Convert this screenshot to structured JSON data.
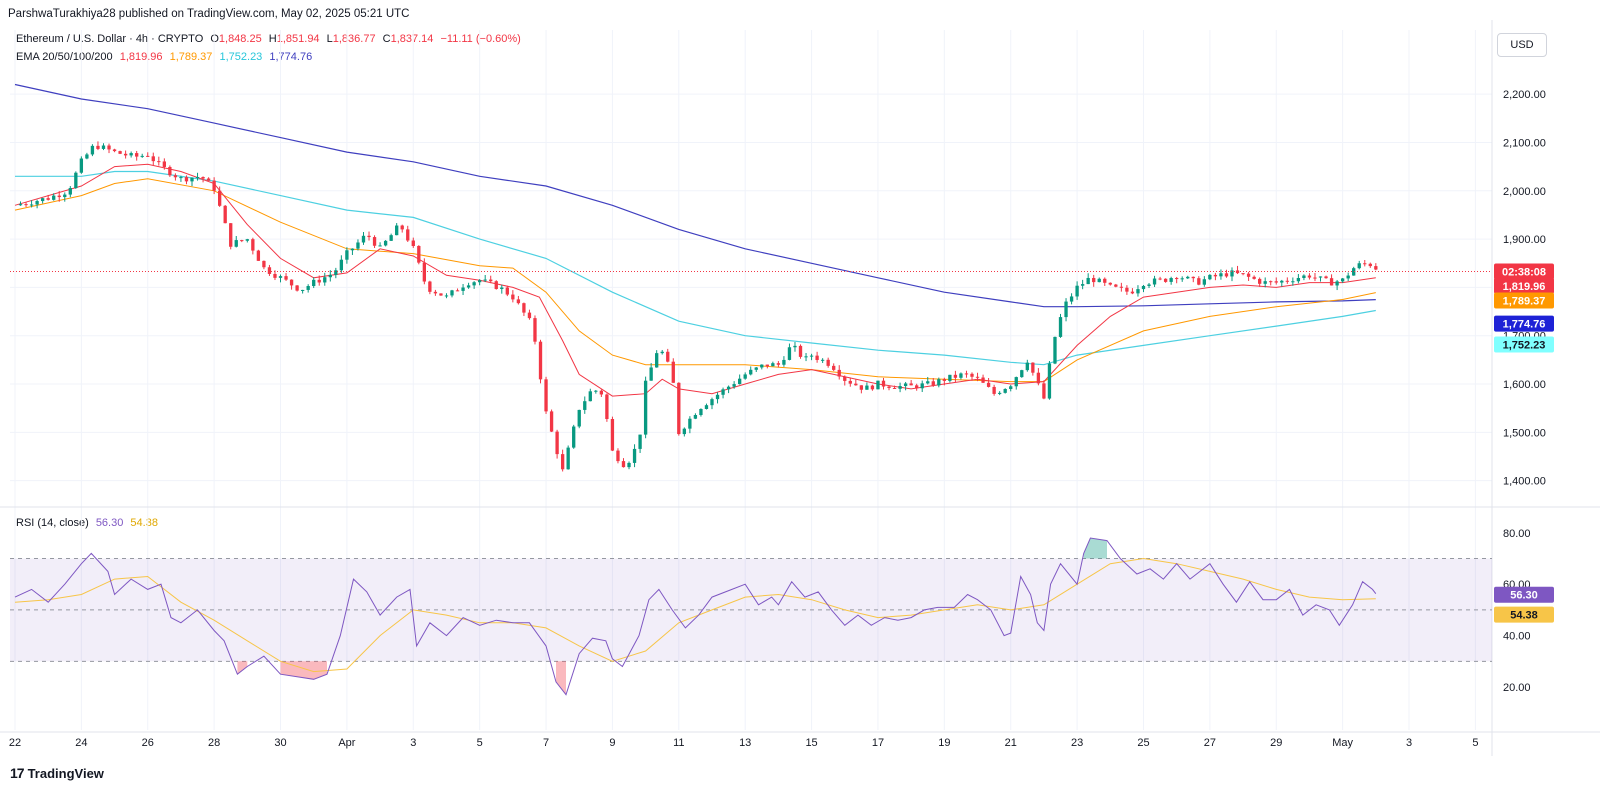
{
  "publisher": "ParshwaTurakhiya28 published on TradingView.com, May 02, 2025 05:21 UTC",
  "currency_button": "USD",
  "brand": {
    "logo": "17",
    "name": "TradingView"
  },
  "ohlc_legend": {
    "symbol": "Ethereum / U.S. Dollar · 4h · CRYPTO",
    "open_label": "O",
    "open": "1,848.25",
    "high_label": "H",
    "high": "1,851.94",
    "low_label": "L",
    "low": "1,836.77",
    "close_label": "C",
    "close": "1,837.14",
    "change": "−11.11 (−0.60%)"
  },
  "ema_legend": {
    "label": "EMA 20/50/100/200",
    "ema20": "1,819.96",
    "ema50": "1,789.37",
    "ema100": "1,752.23",
    "ema200": "1,774.76"
  },
  "rsi_legend": {
    "label": "RSI (14, close)",
    "rsi": "56.30",
    "ma": "54.38"
  },
  "colors": {
    "up": "#089981",
    "down": "#f23645",
    "ema20": "#f23645",
    "ema50": "#ff9800",
    "ema100": "#4dd0e1",
    "ema200": "#3f3fbf",
    "rsi": "#7e57c2",
    "rsi_ma": "#f7c548",
    "rsi_band": "#7e57c2"
  },
  "price_labels": {
    "countdown": "02:38:08",
    "ema20": "1,819.96",
    "ema50": "1,789.37",
    "ema200": "1,774.76",
    "ema100": "1,752.23"
  },
  "rsi_labels": {
    "rsi": "56.30",
    "ma": "54.38"
  },
  "chart_data": {
    "type": "line",
    "title": "Ethereum / U.S. Dollar · 4h · CRYPTO",
    "price_axis": {
      "ticks": [
        1400,
        1500,
        1600,
        1700,
        1800,
        1900,
        2000,
        2100,
        2200
      ],
      "tick_labels": [
        "1,400.00",
        "1,500.00",
        "1,600.00",
        "1,700.00",
        "1,800.00",
        "1,900.00",
        "2,000.00",
        "2,100.00",
        "2,200.00"
      ],
      "ylim": [
        1360,
        2250
      ]
    },
    "rsi_axis": {
      "ticks": [
        20,
        40,
        60,
        80
      ],
      "tick_labels": [
        "20.00",
        "40.00",
        "60.00",
        "80.00"
      ],
      "ylim": [
        13,
        85
      ],
      "band": [
        30,
        70
      ],
      "midline": 50
    },
    "x_axis": {
      "labels": [
        {
          "day": 0,
          "text": "22"
        },
        {
          "day": 2,
          "text": "24"
        },
        {
          "day": 4,
          "text": "26"
        },
        {
          "day": 6,
          "text": "28"
        },
        {
          "day": 8,
          "text": "30"
        },
        {
          "day": 10,
          "text": "Apr"
        },
        {
          "day": 12,
          "text": "3"
        },
        {
          "day": 14,
          "text": "5"
        },
        {
          "day": 16,
          "text": "7"
        },
        {
          "day": 18,
          "text": "9"
        },
        {
          "day": 20,
          "text": "11"
        },
        {
          "day": 22,
          "text": "13"
        },
        {
          "day": 24,
          "text": "15"
        },
        {
          "day": 26,
          "text": "17"
        },
        {
          "day": 28,
          "text": "19"
        },
        {
          "day": 30,
          "text": "21"
        },
        {
          "day": 32,
          "text": "23"
        },
        {
          "day": 34,
          "text": "25"
        },
        {
          "day": 36,
          "text": "27"
        },
        {
          "day": 38,
          "text": "29"
        },
        {
          "day": 40,
          "text": "May"
        },
        {
          "day": 42,
          "text": "3"
        },
        {
          "day": 44,
          "text": "5"
        }
      ],
      "xlim": [
        -0.15,
        44.5
      ]
    },
    "price_path": [
      [
        0,
        1970
      ],
      [
        1,
        1985
      ],
      [
        1.6,
        2000
      ],
      [
        2,
        2060
      ],
      [
        2.4,
        2095
      ],
      [
        3,
        2080
      ],
      [
        3.6,
        2070
      ],
      [
        4,
        2075
      ],
      [
        4.4,
        2050
      ],
      [
        5,
        2025
      ],
      [
        5.6,
        2030
      ],
      [
        6,
        2005
      ],
      [
        6.5,
        1890
      ],
      [
        7,
        1900
      ],
      [
        7.5,
        1840
      ],
      [
        8,
        1820
      ],
      [
        8.6,
        1795
      ],
      [
        9,
        1810
      ],
      [
        9.6,
        1830
      ],
      [
        10,
        1870
      ],
      [
        10.6,
        1910
      ],
      [
        11,
        1880
      ],
      [
        11.6,
        1930
      ],
      [
        12,
        1880
      ],
      [
        12.4,
        1800
      ],
      [
        13,
        1780
      ],
      [
        13.6,
        1810
      ],
      [
        14,
        1815
      ],
      [
        14.6,
        1800
      ],
      [
        15,
        1780
      ],
      [
        15.6,
        1720
      ],
      [
        16,
        1540
      ],
      [
        16.5,
        1420
      ],
      [
        17,
        1550
      ],
      [
        17.4,
        1590
      ],
      [
        17.7,
        1580
      ],
      [
        18,
        1460
      ],
      [
        18.4,
        1430
      ],
      [
        18.8,
        1480
      ],
      [
        19,
        1600
      ],
      [
        19.4,
        1680
      ],
      [
        19.8,
        1620
      ],
      [
        20,
        1500
      ],
      [
        20.6,
        1550
      ],
      [
        21,
        1570
      ],
      [
        21.6,
        1600
      ],
      [
        22,
        1620
      ],
      [
        22.6,
        1640
      ],
      [
        23,
        1640
      ],
      [
        23.4,
        1680
      ],
      [
        23.8,
        1650
      ],
      [
        24,
        1660
      ],
      [
        24.6,
        1640
      ],
      [
        25,
        1610
      ],
      [
        25.6,
        1590
      ],
      [
        26,
        1600
      ],
      [
        26.6,
        1595
      ],
      [
        27,
        1595
      ],
      [
        27.6,
        1600
      ],
      [
        28,
        1610
      ],
      [
        28.6,
        1620
      ],
      [
        29,
        1610
      ],
      [
        29.5,
        1580
      ],
      [
        30,
        1600
      ],
      [
        30.5,
        1650
      ],
      [
        31,
        1570
      ],
      [
        31.3,
        1690
      ],
      [
        31.6,
        1760
      ],
      [
        32,
        1800
      ],
      [
        32.4,
        1820
      ],
      [
        33,
        1800
      ],
      [
        33.6,
        1790
      ],
      [
        34,
        1810
      ],
      [
        34.6,
        1815
      ],
      [
        35,
        1825
      ],
      [
        35.6,
        1810
      ],
      [
        36,
        1820
      ],
      [
        36.6,
        1830
      ],
      [
        37,
        1825
      ],
      [
        37.6,
        1810
      ],
      [
        38,
        1810
      ],
      [
        38.6,
        1820
      ],
      [
        39,
        1825
      ],
      [
        39.6,
        1810
      ],
      [
        40,
        1815
      ],
      [
        40.4,
        1845
      ],
      [
        40.8,
        1850
      ],
      [
        41,
        1837
      ]
    ],
    "ema200_path": [
      [
        0,
        2220
      ],
      [
        2,
        2190
      ],
      [
        4,
        2170
      ],
      [
        6,
        2140
      ],
      [
        8,
        2110
      ],
      [
        10,
        2080
      ],
      [
        12,
        2060
      ],
      [
        14,
        2030
      ],
      [
        16,
        2010
      ],
      [
        18,
        1970
      ],
      [
        20,
        1920
      ],
      [
        22,
        1880
      ],
      [
        24,
        1850
      ],
      [
        26,
        1820
      ],
      [
        28,
        1790
      ],
      [
        30,
        1770
      ],
      [
        31,
        1760
      ],
      [
        32,
        1760
      ],
      [
        34,
        1762
      ],
      [
        36,
        1766
      ],
      [
        38,
        1770
      ],
      [
        40,
        1772
      ],
      [
        41,
        1774.76
      ]
    ],
    "ema100_path": [
      [
        0,
        2030
      ],
      [
        2,
        2030
      ],
      [
        3,
        2040
      ],
      [
        4,
        2040
      ],
      [
        6,
        2020
      ],
      [
        8,
        1990
      ],
      [
        10,
        1960
      ],
      [
        12,
        1945
      ],
      [
        14,
        1900
      ],
      [
        16,
        1860
      ],
      [
        18,
        1790
      ],
      [
        20,
        1730
      ],
      [
        22,
        1700
      ],
      [
        24,
        1685
      ],
      [
        26,
        1670
      ],
      [
        28,
        1660
      ],
      [
        30,
        1645
      ],
      [
        31,
        1640
      ],
      [
        32,
        1660
      ],
      [
        34,
        1680
      ],
      [
        36,
        1700
      ],
      [
        38,
        1720
      ],
      [
        40,
        1740
      ],
      [
        41,
        1752.23
      ]
    ],
    "ema50_path": [
      [
        0,
        1960
      ],
      [
        2,
        1990
      ],
      [
        3,
        2015
      ],
      [
        4,
        2025
      ],
      [
        6,
        2000
      ],
      [
        8,
        1935
      ],
      [
        10,
        1880
      ],
      [
        12,
        1870
      ],
      [
        14,
        1845
      ],
      [
        15,
        1840
      ],
      [
        16,
        1790
      ],
      [
        17,
        1710
      ],
      [
        18,
        1660
      ],
      [
        19,
        1640
      ],
      [
        20,
        1640
      ],
      [
        22,
        1640
      ],
      [
        24,
        1630
      ],
      [
        26,
        1615
      ],
      [
        28,
        1610
      ],
      [
        30,
        1605
      ],
      [
        31,
        1605
      ],
      [
        32,
        1650
      ],
      [
        34,
        1710
      ],
      [
        36,
        1740
      ],
      [
        38,
        1760
      ],
      [
        40,
        1775
      ],
      [
        41,
        1789.37
      ]
    ],
    "ema20_path": [
      [
        0,
        1970
      ],
      [
        2,
        2010
      ],
      [
        3,
        2050
      ],
      [
        4,
        2055
      ],
      [
        5,
        2040
      ],
      [
        6,
        2015
      ],
      [
        7,
        1930
      ],
      [
        8,
        1860
      ],
      [
        9,
        1820
      ],
      [
        10,
        1830
      ],
      [
        11,
        1880
      ],
      [
        12,
        1865
      ],
      [
        13,
        1825
      ],
      [
        14,
        1815
      ],
      [
        15,
        1800
      ],
      [
        15.8,
        1780
      ],
      [
        16.5,
        1690
      ],
      [
        17,
        1620
      ],
      [
        18,
        1575
      ],
      [
        19,
        1580
      ],
      [
        19.5,
        1610
      ],
      [
        20,
        1590
      ],
      [
        21,
        1580
      ],
      [
        22,
        1600
      ],
      [
        23,
        1620
      ],
      [
        24,
        1630
      ],
      [
        25,
        1615
      ],
      [
        26,
        1600
      ],
      [
        27,
        1590
      ],
      [
        28,
        1600
      ],
      [
        29,
        1610
      ],
      [
        30,
        1600
      ],
      [
        31,
        1605
      ],
      [
        32,
        1680
      ],
      [
        33,
        1740
      ],
      [
        34,
        1780
      ],
      [
        35,
        1790
      ],
      [
        36,
        1800
      ],
      [
        37,
        1805
      ],
      [
        38,
        1800
      ],
      [
        39,
        1810
      ],
      [
        40,
        1810
      ],
      [
        41,
        1819.96
      ]
    ],
    "rsi_path": [
      [
        0,
        55
      ],
      [
        0.5,
        58
      ],
      [
        1,
        53
      ],
      [
        1.5,
        60
      ],
      [
        2,
        68
      ],
      [
        2.3,
        72
      ],
      [
        2.8,
        65
      ],
      [
        3,
        56
      ],
      [
        3.5,
        62
      ],
      [
        4,
        58
      ],
      [
        4.4,
        60
      ],
      [
        4.7,
        47
      ],
      [
        5,
        45
      ],
      [
        5.5,
        50
      ],
      [
        6,
        42
      ],
      [
        6.3,
        38
      ],
      [
        6.7,
        25
      ],
      [
        7,
        28
      ],
      [
        7.5,
        32
      ],
      [
        8,
        25
      ],
      [
        8.5,
        24
      ],
      [
        9,
        23
      ],
      [
        9.4,
        25
      ],
      [
        9.8,
        40
      ],
      [
        10.2,
        62
      ],
      [
        10.6,
        57
      ],
      [
        11,
        48
      ],
      [
        11.5,
        55
      ],
      [
        11.9,
        58
      ],
      [
        12.1,
        36
      ],
      [
        12.5,
        45
      ],
      [
        13,
        40
      ],
      [
        13.5,
        47
      ],
      [
        14,
        44
      ],
      [
        14.5,
        46
      ],
      [
        15,
        45
      ],
      [
        15.5,
        45
      ],
      [
        16,
        36
      ],
      [
        16.3,
        22
      ],
      [
        16.6,
        17
      ],
      [
        17,
        33
      ],
      [
        17.4,
        39
      ],
      [
        17.8,
        38
      ],
      [
        18,
        31
      ],
      [
        18.3,
        28
      ],
      [
        18.8,
        40
      ],
      [
        19.1,
        54
      ],
      [
        19.4,
        58
      ],
      [
        19.8,
        50
      ],
      [
        20.2,
        43
      ],
      [
        20.6,
        48
      ],
      [
        21,
        55
      ],
      [
        21.6,
        58
      ],
      [
        22,
        60
      ],
      [
        22.4,
        52
      ],
      [
        22.8,
        55
      ],
      [
        23,
        52
      ],
      [
        23.4,
        61
      ],
      [
        23.8,
        55
      ],
      [
        24.2,
        57
      ],
      [
        24.6,
        50
      ],
      [
        25,
        44
      ],
      [
        25.4,
        48
      ],
      [
        25.8,
        44
      ],
      [
        26.2,
        47
      ],
      [
        26.6,
        46
      ],
      [
        27,
        47
      ],
      [
        27.4,
        50
      ],
      [
        27.8,
        51
      ],
      [
        28.3,
        51
      ],
      [
        28.7,
        56
      ],
      [
        29,
        54
      ],
      [
        29.4,
        50
      ],
      [
        29.8,
        40
      ],
      [
        30,
        41
      ],
      [
        30.3,
        63
      ],
      [
        30.6,
        56
      ],
      [
        30.8,
        45
      ],
      [
        31,
        42
      ],
      [
        31.2,
        60
      ],
      [
        31.5,
        68
      ],
      [
        32,
        60
      ],
      [
        32.2,
        72
      ],
      [
        32.4,
        78
      ],
      [
        32.9,
        77
      ],
      [
        33.3,
        70
      ],
      [
        33.8,
        64
      ],
      [
        34.2,
        66
      ],
      [
        34.6,
        62
      ],
      [
        35,
        68
      ],
      [
        35.4,
        62
      ],
      [
        36,
        68
      ],
      [
        36.4,
        60
      ],
      [
        36.8,
        53
      ],
      [
        37.2,
        61
      ],
      [
        37.6,
        54
      ],
      [
        38,
        54
      ],
      [
        38.4,
        58
      ],
      [
        38.8,
        48
      ],
      [
        39.2,
        52
      ],
      [
        39.6,
        50
      ],
      [
        39.9,
        44
      ],
      [
        40.3,
        52
      ],
      [
        40.6,
        61
      ],
      [
        40.9,
        58
      ],
      [
        41,
        56.3
      ]
    ],
    "rsi_ma_path": [
      [
        0,
        53
      ],
      [
        1,
        54
      ],
      [
        2,
        56
      ],
      [
        3,
        62
      ],
      [
        4,
        63
      ],
      [
        5,
        53
      ],
      [
        6,
        46
      ],
      [
        7,
        38
      ],
      [
        8,
        30
      ],
      [
        9,
        26
      ],
      [
        10,
        27
      ],
      [
        11,
        40
      ],
      [
        12,
        50
      ],
      [
        13,
        48
      ],
      [
        14,
        45
      ],
      [
        15,
        45
      ],
      [
        16,
        43
      ],
      [
        17,
        36
      ],
      [
        18,
        30
      ],
      [
        19,
        34
      ],
      [
        20,
        45
      ],
      [
        21,
        50
      ],
      [
        22,
        55
      ],
      [
        23,
        56
      ],
      [
        24,
        54
      ],
      [
        25,
        50
      ],
      [
        26,
        47
      ],
      [
        27,
        48
      ],
      [
        28,
        50
      ],
      [
        29,
        52
      ],
      [
        30,
        50
      ],
      [
        31,
        52
      ],
      [
        32,
        60
      ],
      [
        33,
        68
      ],
      [
        34,
        70
      ],
      [
        35,
        68
      ],
      [
        36,
        65
      ],
      [
        37,
        62
      ],
      [
        38,
        58
      ],
      [
        39,
        55
      ],
      [
        40,
        54
      ],
      [
        41,
        54.38
      ]
    ]
  }
}
